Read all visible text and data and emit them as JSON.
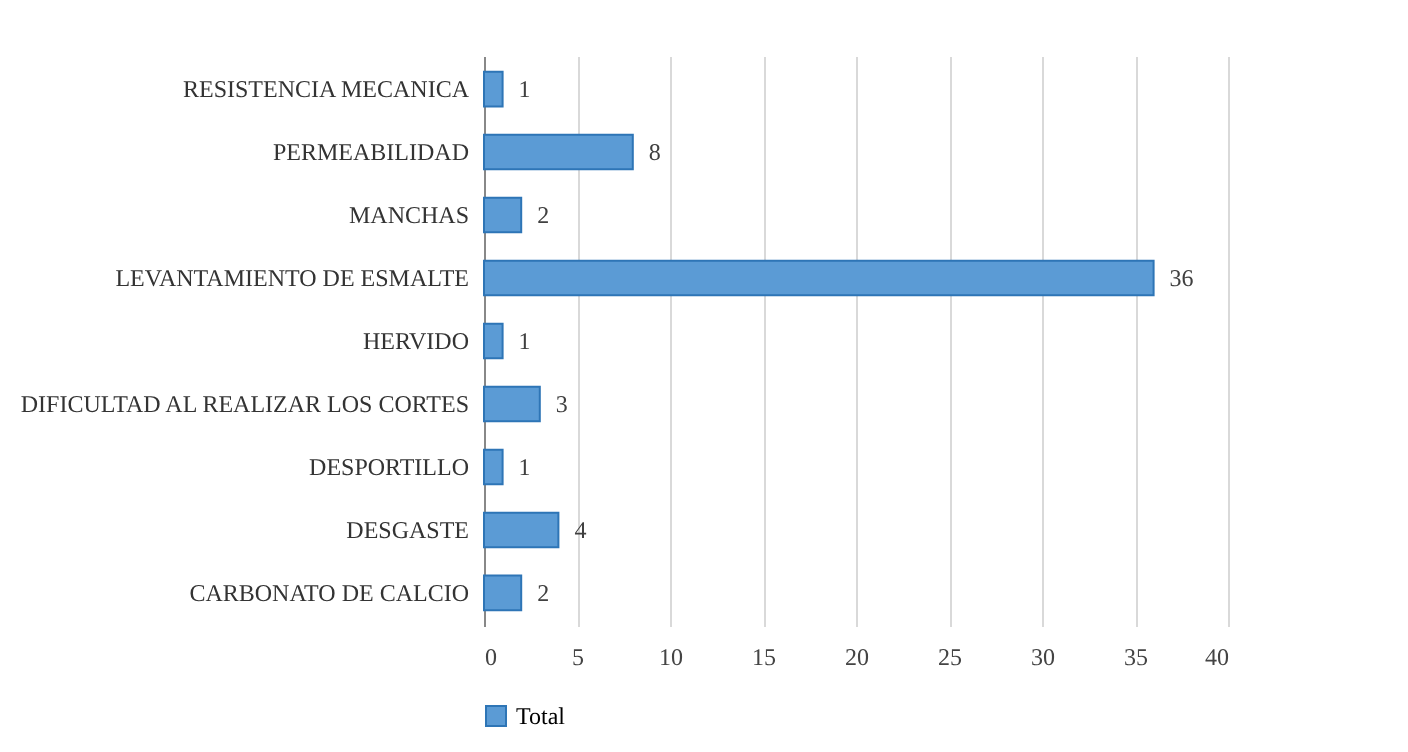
{
  "chart_data": {
    "type": "bar",
    "orientation": "horizontal",
    "categories": [
      "RESISTENCIA MECANICA",
      "PERMEABILIDAD",
      "MANCHAS",
      "LEVANTAMIENTO DE ESMALTE",
      "HERVIDO",
      "DIFICULTAD AL REALIZAR LOS CORTES",
      "DESPORTILLO",
      "DESGASTE",
      "CARBONATO DE CALCIO"
    ],
    "series": [
      {
        "name": "Total",
        "color": "#5b9bd5",
        "values": [
          1,
          8,
          2,
          36,
          1,
          3,
          1,
          4,
          2
        ]
      }
    ],
    "xlim": [
      0,
      40
    ],
    "xticks": [
      0,
      5,
      10,
      15,
      20,
      25,
      30,
      35,
      40
    ],
    "grid": "x",
    "legend": "bottom",
    "data_labels": true
  }
}
